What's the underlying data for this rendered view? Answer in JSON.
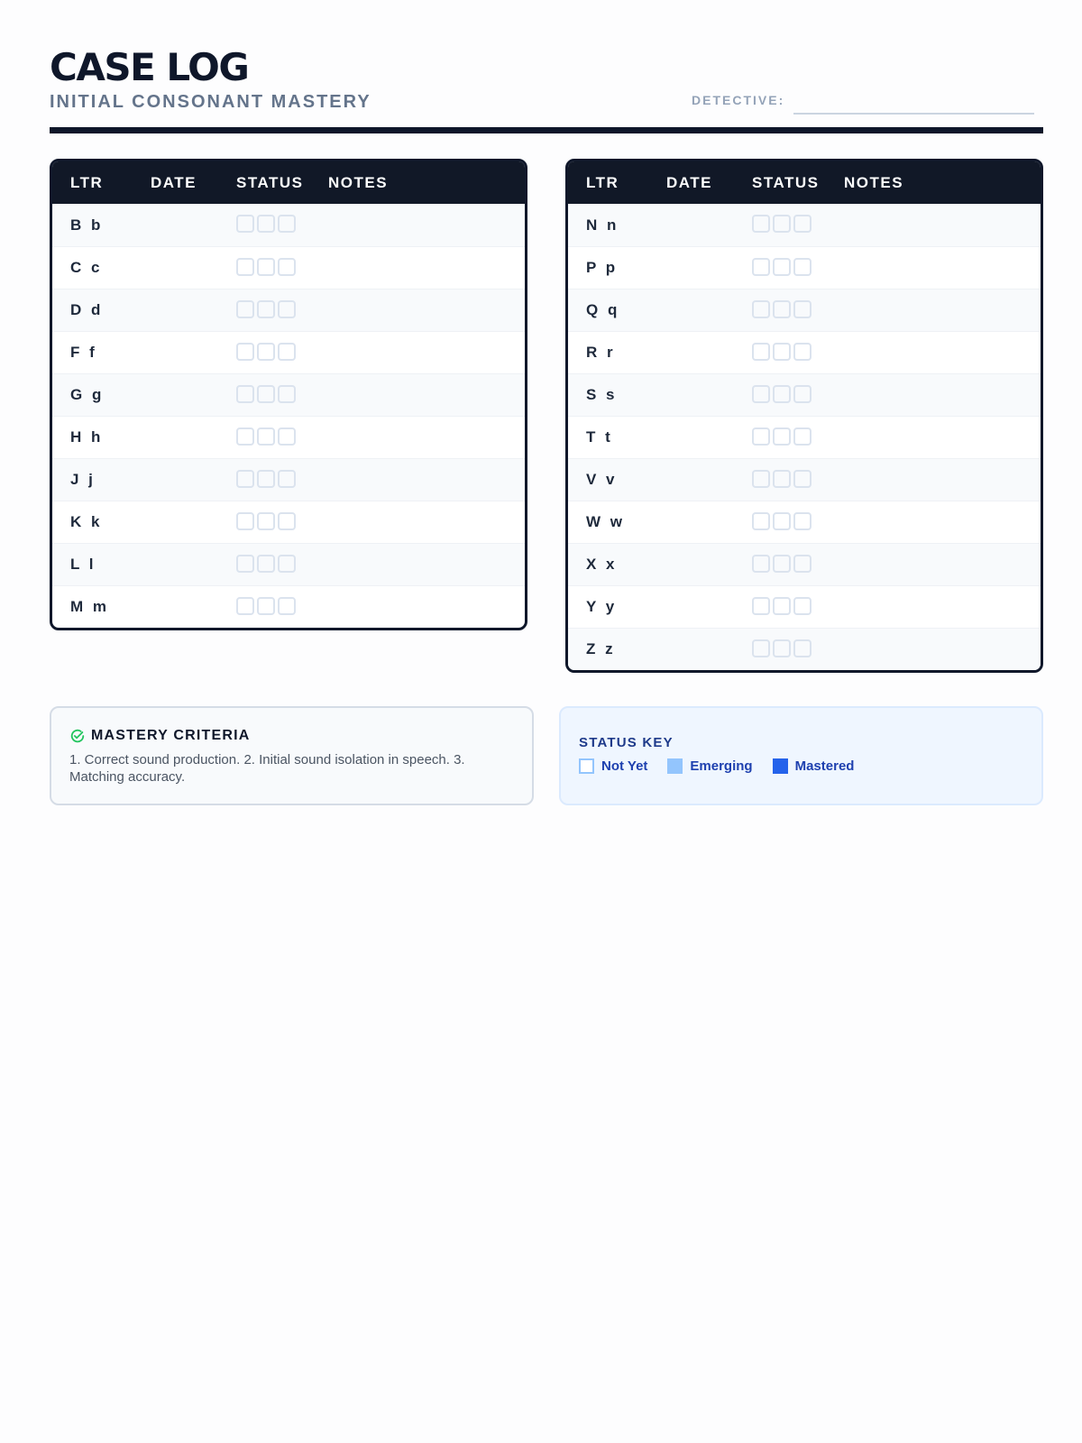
{
  "header": {
    "title": "CASE LOG",
    "subtitle": "INITIAL CONSONANT MASTERY",
    "detective_label": "DETECTIVE:",
    "detective_value": ""
  },
  "table_columns": [
    "LTR",
    "DATE",
    "STATUS",
    "NOTES"
  ],
  "left_table": [
    "B b",
    "C c",
    "D d",
    "F f",
    "G g",
    "H h",
    "J j",
    "K k",
    "L l",
    "M m"
  ],
  "right_table": [
    "N n",
    "P p",
    "Q q",
    "R r",
    "S s",
    "T t",
    "V v",
    "W w",
    "X x",
    "Y y",
    "Z z"
  ],
  "criteria": {
    "icon": "check-circle-icon",
    "title": "MASTERY CRITERIA",
    "text": "1. Correct sound production. 2. Initial sound isolation in speech. 3. Matching accuracy."
  },
  "status_key": {
    "title": "STATUS KEY",
    "items": [
      {
        "label": "Not Yet",
        "color": "#ffffff",
        "border": "#93c5fd"
      },
      {
        "label": "Emerging",
        "color": "#93c5fd"
      },
      {
        "label": "Mastered",
        "color": "#2563eb"
      }
    ]
  },
  "colors": {
    "ink": "#0f172a",
    "accent_green": "#22c55e",
    "accent_blue": "#1e40af"
  }
}
